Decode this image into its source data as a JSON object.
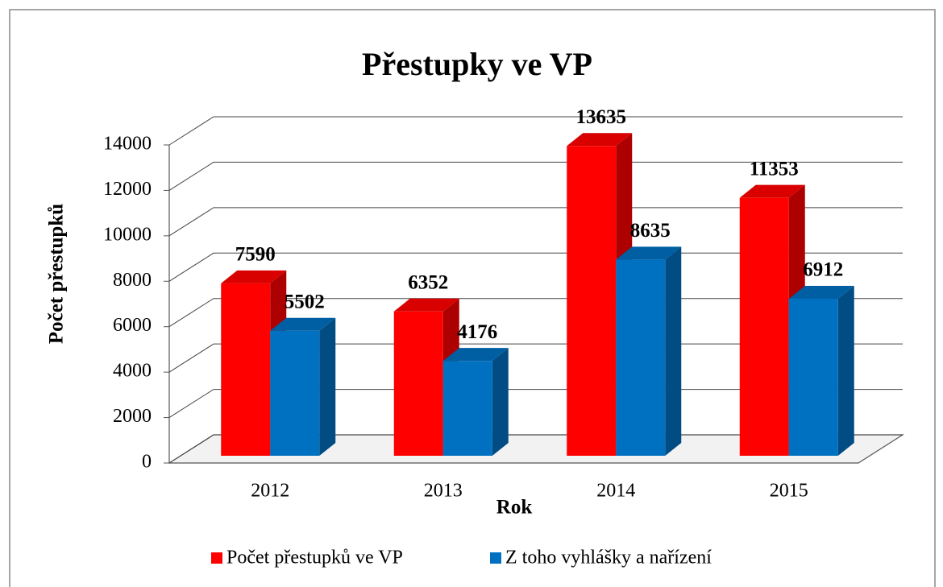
{
  "chart_data": {
    "type": "bar3d",
    "title": "Přestupky ve VP",
    "x_label": "Rok",
    "y_label": "Počet přestupků",
    "categories": [
      "2012",
      "2013",
      "2014",
      "2015"
    ],
    "series": [
      {
        "name": "Počet přestupků ve VP",
        "color": "#ff0000",
        "values": [
          7590,
          6352,
          13635,
          11353
        ]
      },
      {
        "name": "Z toho vyhlášky a nařízení",
        "color": "#0070c0",
        "values": [
          5502,
          4176,
          8635,
          6912
        ]
      }
    ],
    "ylim": [
      0,
      14000
    ],
    "yticks": [
      0,
      2000,
      4000,
      6000,
      8000,
      10000,
      12000,
      14000
    ],
    "grid": true,
    "legend": "bottom"
  }
}
